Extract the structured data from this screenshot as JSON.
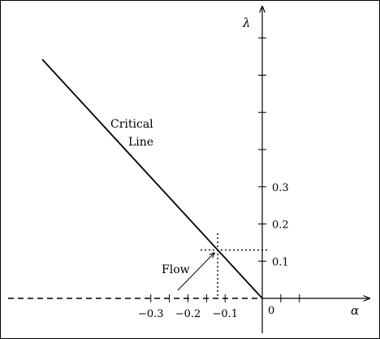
{
  "chart_data": {
    "type": "line",
    "title": "",
    "xlabel": "α",
    "ylabel": "λ",
    "xlim": [
      -0.35,
      0.15
    ],
    "ylim": [
      -0.05,
      0.39
    ],
    "origin_label": "0",
    "x_ticks": [
      {
        "value": -0.3,
        "label": "−0.3"
      },
      {
        "value": -0.2,
        "label": "−0.2"
      },
      {
        "value": -0.1,
        "label": "−0.1"
      }
    ],
    "x_unlabeled_ticks": [
      -0.25,
      -0.15,
      0.05,
      0.1
    ],
    "y_ticks": [
      {
        "value": 0.1,
        "label": "0.1"
      },
      {
        "value": 0.2,
        "label": "0.2"
      },
      {
        "value": 0.3,
        "label": "0.3"
      }
    ],
    "y_unlabeled_ticks": [
      0.4,
      0.5,
      0.6,
      0.7
    ],
    "series": [
      {
        "name": "",
        "style": "solid",
        "points": [
          [
            -0.3,
            0.3
          ],
          [
            0.0,
            0.0
          ]
        ]
      }
    ],
    "dashed_negative_alpha_axis": true,
    "flow_point": {
      "x": -0.12,
      "y": 0.13
    },
    "annotations": {
      "critical_line": [
        "Critical",
        "Line"
      ],
      "flow": "Flow"
    }
  }
}
